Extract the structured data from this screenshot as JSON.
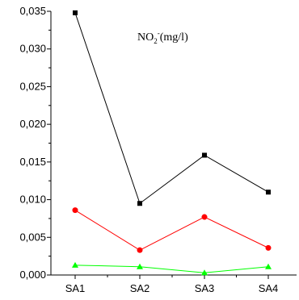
{
  "chart_data": {
    "type": "line",
    "title": "",
    "xlabel": "",
    "ylabel": "",
    "categories": [
      "SA1",
      "SA2",
      "SA3",
      "SA4"
    ],
    "ylim": [
      0,
      0.035
    ],
    "yticks": [
      "0,000",
      "0,005",
      "0,010",
      "0,015",
      "0,020",
      "0,025",
      "0,030",
      "0,035"
    ],
    "grid": false,
    "annotation": {
      "main": "NO",
      "sub": "2",
      "sup": "-",
      "unit": "(mg/l)"
    },
    "series": [
      {
        "marker": "square",
        "color": "#000000",
        "values": [
          0.0348,
          0.0095,
          0.0159,
          0.011
        ]
      },
      {
        "marker": "circle",
        "color": "#ff0000",
        "values": [
          0.0086,
          0.0033,
          0.0077,
          0.0036
        ]
      },
      {
        "marker": "triangle",
        "color": "#00ff00",
        "values": [
          0.0013,
          0.0011,
          0.0003,
          0.0011
        ]
      }
    ]
  }
}
